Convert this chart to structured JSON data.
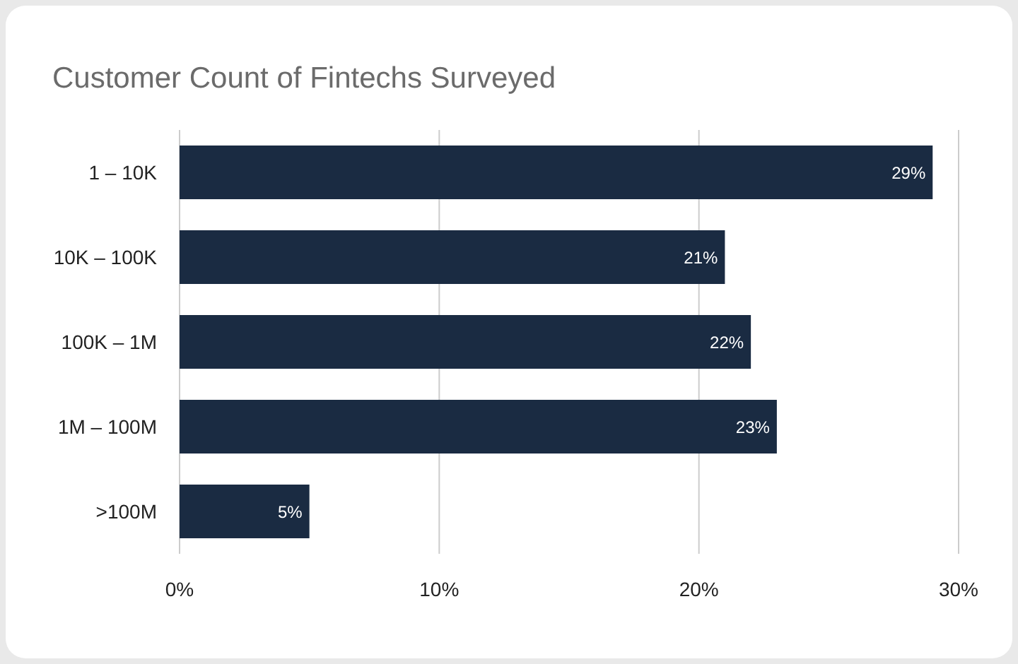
{
  "chart_data": {
    "type": "bar",
    "orientation": "horizontal",
    "title": "Customer Count of Fintechs Surveyed",
    "categories": [
      "1 – 10K",
      "10K – 100K",
      "100K – 1M",
      "1M – 100M",
      ">100M"
    ],
    "values": [
      29,
      21,
      22,
      23,
      5
    ],
    "value_labels": [
      "29%",
      "21%",
      "22%",
      "23%",
      "5%"
    ],
    "color": "#1a2b42",
    "xlim": [
      0,
      30
    ],
    "xticks": [
      {
        "value": 0,
        "label": "0%"
      },
      {
        "value": 10,
        "label": "10%"
      },
      {
        "value": 20,
        "label": "20%"
      },
      {
        "value": 30,
        "label": "30%"
      }
    ],
    "grid": "x"
  }
}
